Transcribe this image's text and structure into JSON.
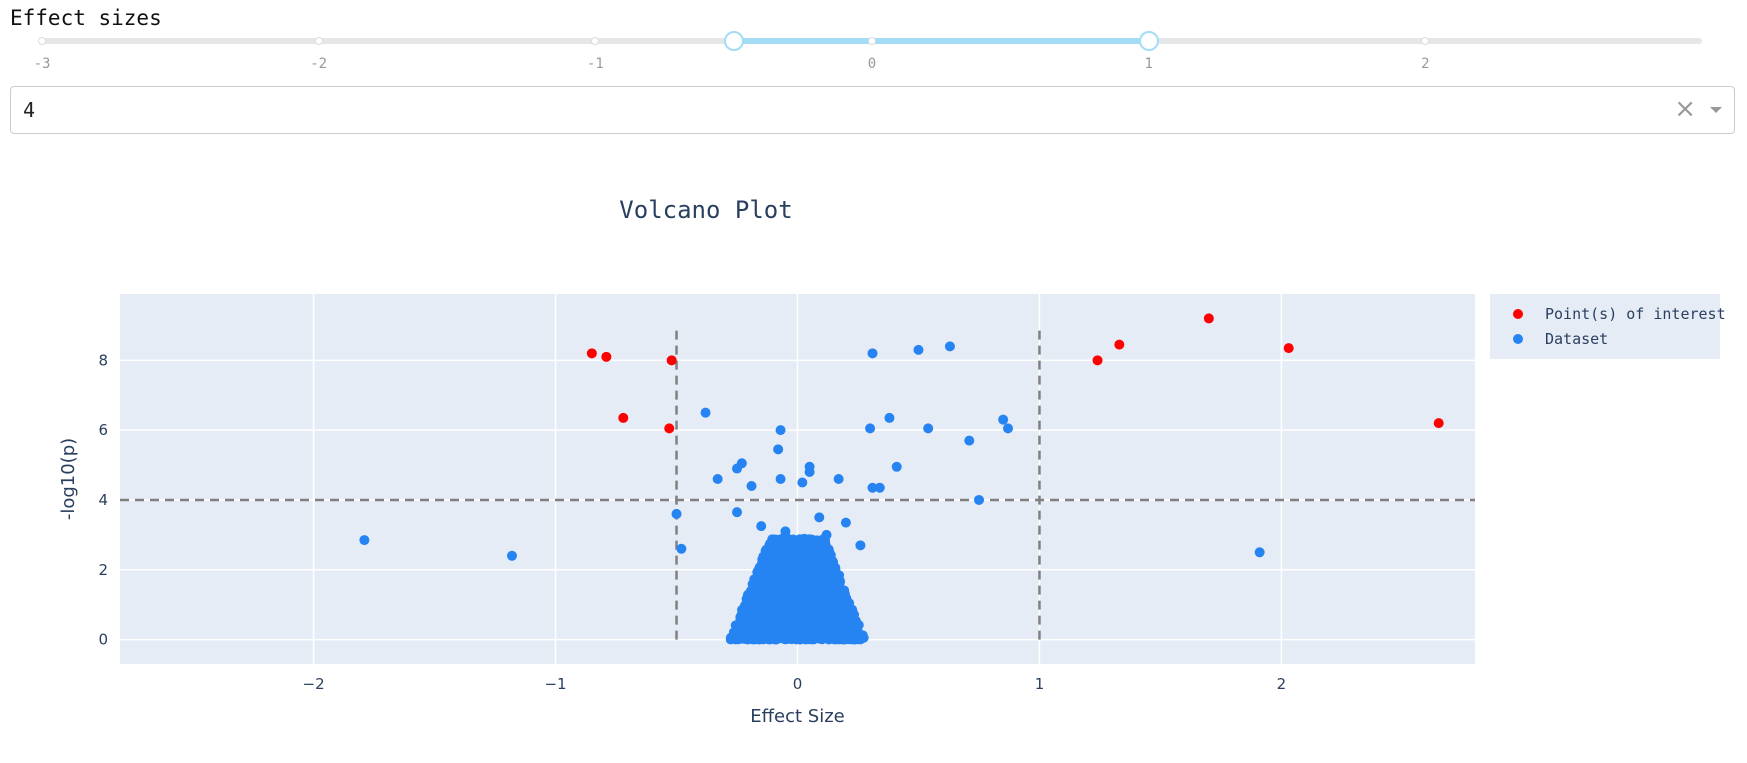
{
  "slider": {
    "label": "Effect sizes",
    "min": -3,
    "max": 3,
    "marks": [
      "-3",
      "-2",
      "-1",
      "0",
      "1",
      "2"
    ],
    "mark_values": [
      -3,
      -2,
      -1,
      0,
      1,
      2
    ],
    "value_low": -0.5,
    "value_high": 1,
    "track_color": "#e6e6e6",
    "range_color": "#a3dcf5"
  },
  "dropdown": {
    "value": "4"
  },
  "chart_data": {
    "type": "scatter",
    "title": "Volcano Plot",
    "xlabel": "Effect Size",
    "ylabel": "-log10(p)",
    "xlim": [
      -2.8,
      2.8
    ],
    "ylim": [
      -0.7,
      9.9
    ],
    "x_ticks": [
      -2,
      -1,
      0,
      1,
      2
    ],
    "x_tick_labels": [
      "−2",
      "−1",
      "0",
      "1",
      "2"
    ],
    "y_ticks": [
      0,
      2,
      4,
      6,
      8
    ],
    "y_tick_labels": [
      "0",
      "2",
      "4",
      "6",
      "8"
    ],
    "grid": true,
    "legend_position": "top-right",
    "threshold_lines": {
      "x": [
        -0.5,
        1
      ],
      "y": [
        4
      ]
    },
    "background": "#e5ecf6",
    "series": [
      {
        "name": "Point(s) of interest",
        "color": "#ff0000",
        "x": [
          -0.85,
          -0.79,
          -0.52,
          -0.72,
          -0.53,
          1.24,
          1.33,
          1.7,
          2.03,
          2.65
        ],
        "y": [
          8.2,
          8.1,
          8.0,
          6.35,
          6.05,
          8.0,
          8.45,
          9.2,
          8.35,
          6.2
        ]
      },
      {
        "name": "Dataset",
        "color": "#2684f2",
        "x": [
          -1.79,
          -1.18,
          -0.38,
          -0.33,
          -0.25,
          -0.23,
          -0.19,
          -0.25,
          -0.08,
          -0.07,
          -0.07,
          0.02,
          0.05,
          0.05,
          0.17,
          0.31,
          0.3,
          0.38,
          0.41,
          0.5,
          0.54,
          0.63,
          0.71,
          0.75,
          0.85,
          0.87,
          1.91,
          -0.5,
          -0.48,
          0.31,
          0.34,
          0.2,
          0.26,
          -0.05,
          0.09,
          -0.15,
          0.12
        ],
        "y": [
          2.85,
          2.4,
          6.5,
          4.6,
          4.9,
          5.05,
          4.4,
          3.65,
          5.45,
          6.0,
          4.6,
          4.5,
          4.95,
          4.8,
          4.6,
          8.2,
          6.05,
          6.35,
          4.95,
          8.3,
          6.05,
          8.4,
          5.7,
          4.0,
          6.3,
          6.05,
          2.5,
          3.6,
          2.6,
          4.35,
          4.35,
          3.35,
          2.7,
          3.1,
          3.5,
          3.25,
          3.0
        ],
        "cloud": {
          "x_center": 0.0,
          "x_spread": 0.28,
          "y_min": 0,
          "y_max": 2.9,
          "count": 1800
        }
      }
    ]
  }
}
